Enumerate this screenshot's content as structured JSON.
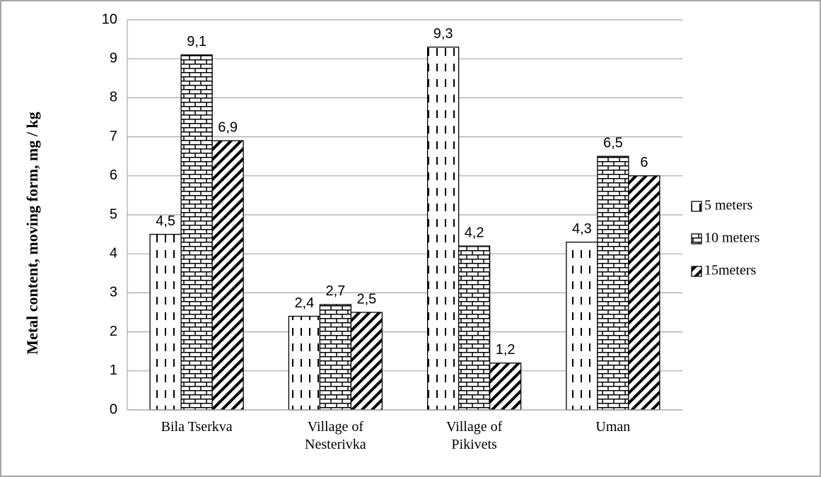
{
  "chart_data": {
    "type": "bar",
    "y_label": "Metal content, moving form, mg / kg",
    "categories": [
      "Bila Tserkva",
      "Village of\nNesterivka",
      "Village of\nPikivets",
      "Uman"
    ],
    "series": [
      {
        "name": "5 meters",
        "values": [
          4.5,
          2.4,
          9.3,
          4.3
        ],
        "value_labels": [
          "4,5",
          "2,4",
          "9,3",
          "4,3"
        ]
      },
      {
        "name": "10 meters",
        "values": [
          9.1,
          2.7,
          4.2,
          6.5
        ],
        "value_labels": [
          "9,1",
          "2,7",
          "4,2",
          "6,5"
        ]
      },
      {
        "name": "15meters",
        "values": [
          6.9,
          2.5,
          1.2,
          6
        ],
        "value_labels": [
          "6,9",
          "2,5",
          "1,2",
          "6"
        ]
      }
    ],
    "ylim": [
      0,
      10
    ],
    "yticks": [
      0,
      1,
      2,
      3,
      4,
      5,
      6,
      7,
      8,
      9,
      10
    ],
    "grid": true,
    "legend": "right"
  }
}
